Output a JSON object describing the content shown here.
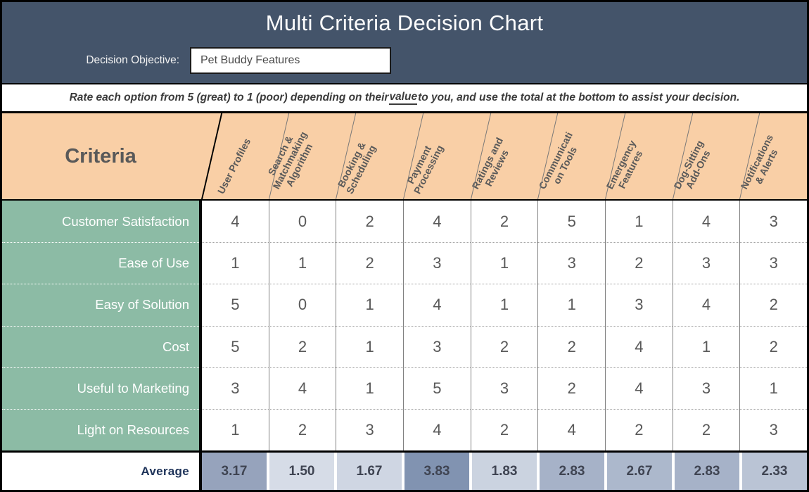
{
  "colors": {
    "header_bg": "#44546A",
    "peach": "#F9CFA6",
    "green": "#8CBBA5",
    "navy": "#1E3359",
    "text_gray": "#595959"
  },
  "header": {
    "title": "Multi Criteria Decision Chart",
    "objective_label": "Decision Objective:",
    "objective_value": "Pet Buddy Features"
  },
  "instruction": {
    "prefix": "Rate each option from 5 (great) to 1 (poor) depending on their ",
    "underlined": "value",
    "suffix": " to you, and use the total at the bottom to assist your decision."
  },
  "table": {
    "criteria_label": "Criteria",
    "columns": [
      "User Profiles",
      "Search &\nMatchmaking\nAlgorithm",
      "Booking &\nScheduling",
      "Payment\nProcessing",
      "Ratings and\nReviews",
      "Communicati\non Tools",
      "Emergency\nFeatures",
      "Dog-Sitting\nAdd-Ons",
      "Notifications\n& Alerts"
    ],
    "rows": [
      {
        "label": "Customer Satisfaction",
        "values": [
          4,
          0,
          2,
          4,
          2,
          5,
          1,
          4,
          3
        ]
      },
      {
        "label": "Ease of Use",
        "values": [
          1,
          1,
          2,
          3,
          1,
          3,
          2,
          3,
          3
        ]
      },
      {
        "label": "Easy of Solution",
        "values": [
          5,
          0,
          1,
          4,
          1,
          1,
          3,
          4,
          2
        ]
      },
      {
        "label": "Cost",
        "values": [
          5,
          2,
          1,
          3,
          2,
          2,
          4,
          1,
          2
        ]
      },
      {
        "label": "Useful to Marketing",
        "values": [
          3,
          4,
          1,
          5,
          3,
          2,
          4,
          3,
          1
        ]
      },
      {
        "label": "Light on Resources",
        "values": [
          1,
          2,
          3,
          4,
          2,
          4,
          2,
          2,
          3
        ]
      }
    ],
    "average": {
      "label": "Average",
      "cells": [
        {
          "value": "3.17",
          "color": "#96A3BC"
        },
        {
          "value": "1.50",
          "color": "#D6DCE7"
        },
        {
          "value": "1.67",
          "color": "#CFD6E3"
        },
        {
          "value": "3.83",
          "color": "#8193B1"
        },
        {
          "value": "1.83",
          "color": "#CBD3E0"
        },
        {
          "value": "2.83",
          "color": "#A6B2C8"
        },
        {
          "value": "2.67",
          "color": "#ACB8CC"
        },
        {
          "value": "2.83",
          "color": "#A6B2C8"
        },
        {
          "value": "2.33",
          "color": "#BAC4D5"
        }
      ]
    }
  }
}
